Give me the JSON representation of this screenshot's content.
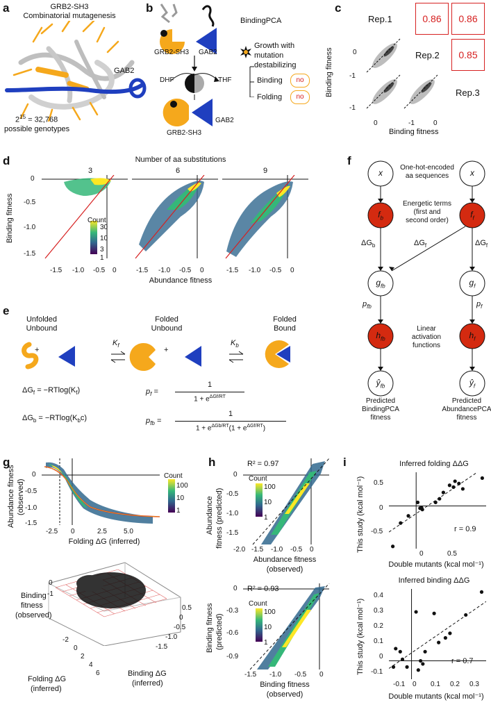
{
  "panels": {
    "a": {
      "letter": "a",
      "title1": "GRB2-SH3",
      "title2": "Combinatorial mutagenesis",
      "partner": "GAB2",
      "genotypes_expr_base": "2",
      "genotypes_expr_exp": "15",
      "genotypes_expr_rest": " = 32,768",
      "genotypes_caption": "possible genotypes"
    },
    "b": {
      "letter": "b",
      "assay": "BindingPCA",
      "label_sh3": "GRB2-SH3",
      "label_gab2": "GAB2",
      "label_dhf": "DHF",
      "label_thf": "THF",
      "label_sh3_bottom": "GRB2-SH3",
      "label_gab2_bottom": "GAB2",
      "legend_line1": "Growth with",
      "legend_line2": "mutation",
      "legend_line3": "destabilizing",
      "branch1": "Binding",
      "branch2": "Folding",
      "no": "no"
    },
    "c": {
      "letter": "c",
      "rep1": "Rep.1",
      "rep2": "Rep.2",
      "rep3": "Rep.3",
      "r12": "0.86",
      "r13": "0.86",
      "r23": "0.85",
      "ylabel": "Binding fitness",
      "xlabel": "Binding fitness",
      "ticks": [
        "-1",
        "0",
        "-1",
        "0",
        "-1",
        "0"
      ]
    },
    "d": {
      "letter": "d",
      "title": "Number of aa substitutions",
      "facets": [
        "3",
        "6",
        "9"
      ],
      "ylabel": "Binding fitness",
      "xlabel": "Abundance fitness",
      "yticks": [
        "0",
        "-0.5",
        "-1.0",
        "-1.5"
      ],
      "xticks": [
        "-1.5",
        "-1.0",
        "-0.5",
        "0"
      ],
      "legend_title": "Count",
      "legend_ticks": [
        "30",
        "10",
        "3",
        "1"
      ]
    },
    "e": {
      "letter": "e",
      "state1_a": "Unfolded",
      "state1_b": "Unbound",
      "state2_a": "Folded",
      "state2_b": "Unbound",
      "state3_a": "Folded",
      "state3_b": "Bound",
      "kf": "K",
      "kf_sub": "f",
      "kb": "K",
      "kb_sub": "b",
      "plus": "+",
      "eq1_lhs": "ΔG",
      "eq1_lhs_sub": "f",
      "eq1_rhs": " = −RTlog(K",
      "eq1_rhs_sub": "f",
      "eq1_end": ")",
      "eq2_lhs": "ΔG",
      "eq2_lhs_sub": "b",
      "eq2_rhs": " = −RTlog(K",
      "eq2_rhs_sub": "b",
      "eq2_end": "c)",
      "pf_lhs": "p",
      "pf_sub": "f",
      "eq": "=",
      "one": "1",
      "pf_den": "1 + e",
      "pf_den_exp": "ΔGf/RT",
      "pfb_lhs": "p",
      "pfb_sub": "fb",
      "pfb_den": "1 + e",
      "pfb_den_exp": "ΔGb/RT",
      "pfb_den_tail": "(1 + e",
      "pfb_den_tail_exp": "ΔGf/RT",
      "pfb_den_close": ")"
    },
    "f": {
      "letter": "f",
      "x": "x",
      "fb": "f",
      "fb_sub": "b",
      "ff": "f",
      "ff_sub": "f",
      "gfb": "g",
      "gfb_sub": "fb",
      "gf": "g",
      "gf_sub": "f",
      "hfb": "h",
      "hfb_sub": "fb",
      "hf": "h",
      "hf_sub": "f",
      "yfb": "ŷ",
      "yfb_sub": "fb",
      "yf": "ŷ",
      "yf_sub": "f",
      "note_onehot1": "One-hot-encoded",
      "note_onehot2": "aa sequences",
      "note_energy1": "Energetic terms",
      "note_energy2": "(first and",
      "note_energy3": "second order)",
      "dgb": "ΔG",
      "dgb_sub": "b",
      "dgf": "ΔG",
      "dgf_sub": "f",
      "dgf2": "ΔG",
      "dgf2_sub": "f",
      "pfb": "p",
      "pfb_sub": "fb",
      "pf": "p",
      "pf_sub": "f",
      "note_linear1": "Linear",
      "note_linear2": "activation",
      "note_linear3": "functions",
      "pred_b1": "Predicted",
      "pred_b2": "BindingPCA",
      "pred_b3": "fitness",
      "pred_a1": "Predicted",
      "pred_a2": "AbundancePCA",
      "pred_a3": "fitness"
    },
    "g": {
      "letter": "g",
      "ylabel1": "Abundance fitness",
      "ylabel2": "(observed)",
      "xlabel": "Folding ΔG (inferred)",
      "yticks": [
        "0",
        "-0.5",
        "-1.0",
        "-1.5"
      ],
      "xticks": [
        "-2.5",
        "0",
        "2.5",
        "5.0"
      ],
      "legend_title": "Count",
      "legend_ticks": [
        "100",
        "10",
        "1"
      ],
      "z1": "Binding",
      "z2": "fitness",
      "z3": "(observed)",
      "x3d1": "Folding ΔG",
      "x3d2": "(inferred)",
      "y3d1": "Binding ΔG",
      "y3d2": "(inferred)",
      "x3d_ticks": [
        "-2",
        "0",
        "2",
        "4",
        "6"
      ],
      "y3d_ticks": [
        "0.5",
        "0",
        "-0.5",
        "-1.0",
        "-1.5"
      ],
      "z3d_ticks": [
        "0",
        "-1"
      ]
    },
    "h": {
      "letter": "h",
      "top_r2": "R² = 0.97",
      "top_ylabel1": "Abundance",
      "top_ylabel2": "fitness (predicted)",
      "top_xlabel": "Abundance fitness",
      "top_xlabel2": "(observed)",
      "top_yticks": [
        "0",
        "-0.5",
        "-1.0",
        "-1.5"
      ],
      "top_xticks": [
        "-2.0",
        "-1.5",
        "-1.0",
        "-0.5",
        "0"
      ],
      "bot_r2": "R² = 0.93",
      "bot_ylabel1": "Binding fitness",
      "bot_ylabel2": "(predicted)",
      "bot_xlabel": "Binding fitness",
      "bot_xlabel2": "(observed)",
      "bot_yticks": [
        "0",
        "-0.3",
        "-0.6",
        "-0.9"
      ],
      "bot_xticks": [
        "-1.5",
        "-1.0",
        "-0.5",
        "0"
      ],
      "legend_title": "Count",
      "legend_ticks": [
        "100",
        "10",
        "1"
      ]
    },
    "i": {
      "letter": "i",
      "top_title": "Inferred folding ΔΔG",
      "top_r": "r = 0.9",
      "top_ylabel": "This study (kcal mol⁻¹)",
      "top_xlabel": "Double mutants (kcal mol⁻¹)",
      "top_yticks": [
        "0.5",
        "0",
        "-0.5"
      ],
      "top_xticks": [
        "0",
        "0.5"
      ],
      "bot_title": "Inferred binding ΔΔG",
      "bot_r": "r = 0.7",
      "bot_ylabel": "This study (kcal mol⁻¹)",
      "bot_xlabel": "Double mutants (kcal mol⁻¹)",
      "bot_yticks": [
        "0.4",
        "0.3",
        "0.2",
        "0.1",
        "0",
        "-0.1"
      ],
      "bot_xticks": [
        "-0.1",
        "0",
        "0.1",
        "0.2",
        "0.3"
      ]
    }
  },
  "colors": {
    "orange": "#f5a81c",
    "blue": "#1f3fbf",
    "red": "#d62020",
    "node_red": "#d42a10"
  },
  "chart_data": [
    {
      "type": "scatter",
      "panel": "i-top",
      "title": "Inferred folding ΔΔG",
      "xlabel": "Double mutants (kcal mol⁻¹)",
      "ylabel": "This study (kcal mol⁻¹)",
      "annotation": "r = 0.9",
      "xlim": [
        -0.35,
        0.9
      ],
      "ylim": [
        -0.95,
        0.75
      ],
      "points": [
        [
          -0.3,
          -0.9
        ],
        [
          -0.2,
          -0.38
        ],
        [
          -0.1,
          -0.22
        ],
        [
          0.02,
          0.08
        ],
        [
          0.05,
          -0.05
        ],
        [
          0.07,
          -0.04
        ],
        [
          0.08,
          -0.08
        ],
        [
          0.25,
          0.08
        ],
        [
          0.3,
          0.16
        ],
        [
          0.35,
          0.3
        ],
        [
          0.43,
          0.46
        ],
        [
          0.48,
          0.42
        ],
        [
          0.5,
          0.55
        ],
        [
          0.55,
          0.5
        ],
        [
          0.6,
          0.38
        ],
        [
          0.85,
          0.62
        ]
      ]
    },
    {
      "type": "scatter",
      "panel": "i-bottom",
      "title": "Inferred binding ΔΔG",
      "xlabel": "Double mutants (kcal mol⁻¹)",
      "ylabel": "This study (kcal mol⁻¹)",
      "annotation": "r = 0.7",
      "xlim": [
        -0.1,
        0.33
      ],
      "ylim": [
        -0.12,
        0.47
      ],
      "points": [
        [
          -0.08,
          -0.04
        ],
        [
          -0.07,
          0.08
        ],
        [
          -0.05,
          0.06
        ],
        [
          -0.04,
          0.01
        ],
        [
          -0.02,
          -0.04
        ],
        [
          0.02,
          0.32
        ],
        [
          0.03,
          -0.06
        ],
        [
          0.04,
          0.0
        ],
        [
          0.05,
          -0.02
        ],
        [
          0.06,
          0.06
        ],
        [
          0.1,
          0.31
        ],
        [
          0.12,
          0.12
        ],
        [
          0.15,
          0.15
        ],
        [
          0.17,
          0.18
        ],
        [
          0.24,
          0.3
        ],
        [
          0.31,
          0.45
        ]
      ]
    },
    {
      "type": "heatmap",
      "panel": "c",
      "title": "",
      "correlations": [
        {
          "pair": "Rep.1-Rep.2",
          "r": 0.86
        },
        {
          "pair": "Rep.1-Rep.3",
          "r": 0.86
        },
        {
          "pair": "Rep.2-Rep.3",
          "r": 0.85
        }
      ]
    }
  ]
}
